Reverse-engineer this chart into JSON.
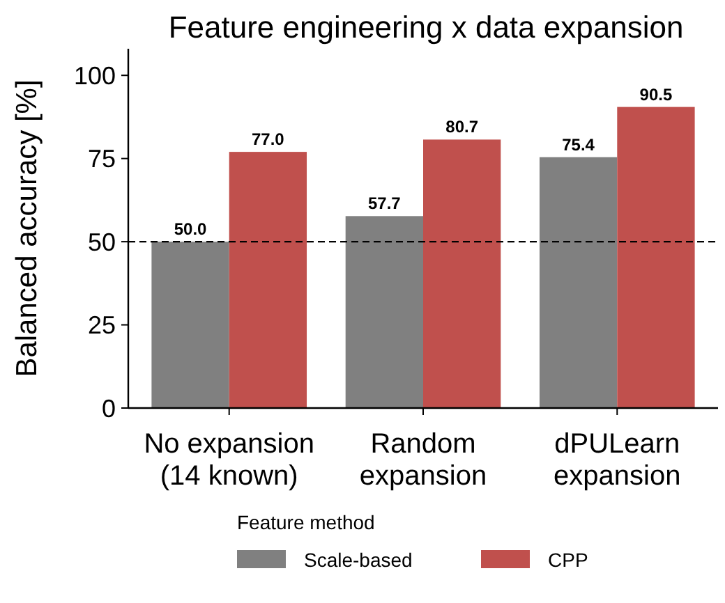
{
  "chart_data": {
    "type": "bar",
    "title": "Feature engineering x data expansion",
    "ylabel": "Balanced accuracy [%]",
    "categories": [
      "No expansion\n(14 known)",
      "Random\nexpansion",
      "dPULearn\nexpansion"
    ],
    "series": [
      {
        "name": "Scale-based",
        "color": "#808080",
        "values": [
          50.0,
          57.7,
          75.4
        ],
        "value_labels": [
          "50.0",
          "57.7",
          "75.4"
        ]
      },
      {
        "name": "CPP",
        "color": "#c0504d",
        "values": [
          77.0,
          80.7,
          90.5
        ],
        "value_labels": [
          "77.0",
          "80.7",
          "90.5"
        ]
      }
    ],
    "ylim": [
      0,
      108
    ],
    "yticks": [
      0,
      25,
      50,
      75,
      100
    ],
    "grid": false,
    "legend": "bottom",
    "legend_title": "Feature method",
    "ref_lines": [
      {
        "axis": "y",
        "value": 50,
        "line_style": "dashed",
        "color": "#000000"
      }
    ]
  }
}
